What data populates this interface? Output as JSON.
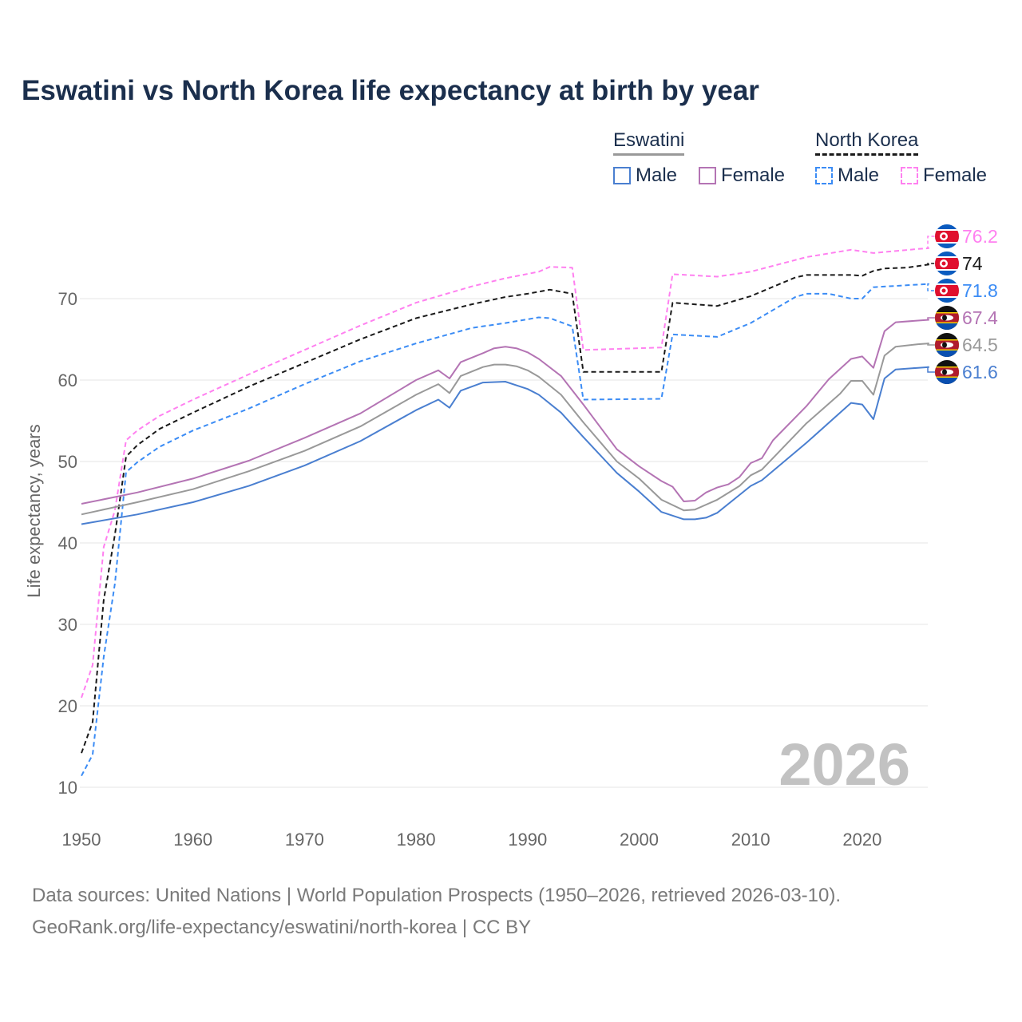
{
  "title": "Eswatini vs North Korea life expectancy at birth by year",
  "legend": {
    "groups": [
      {
        "name": "Eswatini",
        "items": [
          "Male",
          "Female"
        ]
      },
      {
        "name": "North Korea",
        "items": [
          "Male",
          "Female"
        ]
      }
    ]
  },
  "footer": {
    "line1": "Data sources: United Nations | World Population Prospects (1950–2026, retrieved 2026-03-10).",
    "line2": "GeoRank.org/life-expectancy/eswatini/north-korea | CC BY"
  },
  "chart_data": {
    "type": "line",
    "title": "Eswatini vs North Korea life expectancy at birth by year",
    "xlabel": "",
    "ylabel": "Life expectancy, years",
    "xlim": [
      1950,
      2026
    ],
    "ylim": [
      10,
      78
    ],
    "x_ticks": [
      "1950",
      "1960",
      "1970",
      "1980",
      "1990",
      "2000",
      "2010",
      "2020"
    ],
    "y_ticks": [
      "10",
      "20",
      "30",
      "40",
      "50",
      "60",
      "70"
    ],
    "grid": true,
    "year_watermark": "2026",
    "series": [
      {
        "name": "North Korea Female",
        "color": "#ff80f0",
        "dash": true,
        "end_label": "76.2",
        "flag": "north-korea",
        "points": [
          [
            1950,
            21.0
          ],
          [
            1951,
            25.0
          ],
          [
            1952,
            39.5
          ],
          [
            1953,
            44.0
          ],
          [
            1954,
            52.6
          ],
          [
            1955,
            53.8
          ],
          [
            1957,
            55.6
          ],
          [
            1960,
            57.6
          ],
          [
            1965,
            60.7
          ],
          [
            1970,
            63.7
          ],
          [
            1975,
            66.7
          ],
          [
            1980,
            69.5
          ],
          [
            1985,
            71.5
          ],
          [
            1988,
            72.5
          ],
          [
            1991,
            73.3
          ],
          [
            1992,
            73.9
          ],
          [
            1994,
            73.8
          ],
          [
            1995,
            63.7
          ],
          [
            2002,
            64.0
          ],
          [
            2003,
            73.0
          ],
          [
            2007,
            72.7
          ],
          [
            2010,
            73.3
          ],
          [
            2015,
            75.1
          ],
          [
            2019,
            76.0
          ],
          [
            2021,
            75.6
          ],
          [
            2025,
            76.1
          ],
          [
            2026,
            76.2
          ]
        ]
      },
      {
        "name": "North Korea",
        "color": "#1a1a1a",
        "dash": true,
        "end_label": "74",
        "flag": "north-korea",
        "points": [
          [
            1950,
            14.2
          ],
          [
            1951,
            18.0
          ],
          [
            1952,
            33.0
          ],
          [
            1953,
            41.0
          ],
          [
            1954,
            50.6
          ],
          [
            1955,
            52.0
          ],
          [
            1957,
            54.0
          ],
          [
            1960,
            56.0
          ],
          [
            1965,
            59.2
          ],
          [
            1970,
            62.1
          ],
          [
            1975,
            65.0
          ],
          [
            1980,
            67.6
          ],
          [
            1985,
            69.3
          ],
          [
            1988,
            70.2
          ],
          [
            1990,
            70.6
          ],
          [
            1992,
            71.1
          ],
          [
            1994,
            70.6
          ],
          [
            1995,
            61.0
          ],
          [
            2002,
            61.0
          ],
          [
            2003,
            69.5
          ],
          [
            2007,
            69.1
          ],
          [
            2010,
            70.3
          ],
          [
            2014,
            72.6
          ],
          [
            2015,
            72.9
          ],
          [
            2019,
            72.9
          ],
          [
            2020,
            72.8
          ],
          [
            2021,
            73.4
          ],
          [
            2022,
            73.7
          ],
          [
            2024,
            73.8
          ],
          [
            2026,
            74.2
          ]
        ]
      },
      {
        "name": "North Korea Male",
        "color": "#3b8cf5",
        "dash": true,
        "end_label": "71.8",
        "flag": "north-korea",
        "points": [
          [
            1950,
            11.4
          ],
          [
            1951,
            14.0
          ],
          [
            1952,
            26.0
          ],
          [
            1953,
            35.0
          ],
          [
            1954,
            48.7
          ],
          [
            1955,
            49.9
          ],
          [
            1957,
            51.8
          ],
          [
            1960,
            53.8
          ],
          [
            1965,
            56.5
          ],
          [
            1970,
            59.5
          ],
          [
            1975,
            62.3
          ],
          [
            1980,
            64.5
          ],
          [
            1985,
            66.4
          ],
          [
            1988,
            67.0
          ],
          [
            1991,
            67.7
          ],
          [
            1992,
            67.6
          ],
          [
            1994,
            66.6
          ],
          [
            1995,
            57.6
          ],
          [
            2002,
            57.7
          ],
          [
            2003,
            65.6
          ],
          [
            2007,
            65.3
          ],
          [
            2010,
            67.0
          ],
          [
            2014,
            70.2
          ],
          [
            2015,
            70.6
          ],
          [
            2017,
            70.6
          ],
          [
            2019,
            70.0
          ],
          [
            2020,
            70.0
          ],
          [
            2021,
            71.4
          ],
          [
            2026,
            71.8
          ]
        ]
      },
      {
        "name": "Eswatini Female",
        "color": "#b474b4",
        "dash": false,
        "end_label": "67.4",
        "flag": "eswatini",
        "points": [
          [
            1950,
            44.8
          ],
          [
            1955,
            46.2
          ],
          [
            1960,
            47.9
          ],
          [
            1965,
            50.1
          ],
          [
            1970,
            52.9
          ],
          [
            1975,
            55.9
          ],
          [
            1980,
            60.0
          ],
          [
            1982,
            61.2
          ],
          [
            1983,
            60.2
          ],
          [
            1984,
            62.2
          ],
          [
            1986,
            63.3
          ],
          [
            1987,
            63.9
          ],
          [
            1988,
            64.1
          ],
          [
            1989,
            63.9
          ],
          [
            1990,
            63.4
          ],
          [
            1991,
            62.6
          ],
          [
            1993,
            60.5
          ],
          [
            1995,
            57.0
          ],
          [
            1998,
            51.5
          ],
          [
            2000,
            49.4
          ],
          [
            2002,
            47.6
          ],
          [
            2003,
            46.9
          ],
          [
            2004,
            45.1
          ],
          [
            2005,
            45.2
          ],
          [
            2006,
            46.2
          ],
          [
            2007,
            46.8
          ],
          [
            2008,
            47.2
          ],
          [
            2009,
            48.1
          ],
          [
            2010,
            49.8
          ],
          [
            2011,
            50.4
          ],
          [
            2012,
            52.6
          ],
          [
            2015,
            56.8
          ],
          [
            2017,
            60.1
          ],
          [
            2019,
            62.6
          ],
          [
            2020,
            62.9
          ],
          [
            2021,
            61.5
          ],
          [
            2022,
            66.0
          ],
          [
            2023,
            67.1
          ],
          [
            2025,
            67.3
          ],
          [
            2026,
            67.4
          ]
        ]
      },
      {
        "name": "Eswatini",
        "color": "#999999",
        "dash": false,
        "end_label": "64.5",
        "flag": "eswatini",
        "points": [
          [
            1950,
            43.5
          ],
          [
            1955,
            45.0
          ],
          [
            1960,
            46.6
          ],
          [
            1965,
            48.8
          ],
          [
            1970,
            51.3
          ],
          [
            1975,
            54.3
          ],
          [
            1980,
            58.2
          ],
          [
            1982,
            59.5
          ],
          [
            1983,
            58.4
          ],
          [
            1984,
            60.5
          ],
          [
            1986,
            61.6
          ],
          [
            1987,
            61.9
          ],
          [
            1988,
            61.9
          ],
          [
            1989,
            61.7
          ],
          [
            1990,
            61.2
          ],
          [
            1991,
            60.4
          ],
          [
            1993,
            58.2
          ],
          [
            1995,
            54.8
          ],
          [
            1998,
            50.0
          ],
          [
            2000,
            47.9
          ],
          [
            2002,
            45.3
          ],
          [
            2004,
            44.0
          ],
          [
            2005,
            44.1
          ],
          [
            2007,
            45.3
          ],
          [
            2009,
            47.0
          ],
          [
            2010,
            48.3
          ],
          [
            2011,
            49.0
          ],
          [
            2015,
            54.7
          ],
          [
            2018,
            58.3
          ],
          [
            2019,
            59.9
          ],
          [
            2020,
            59.9
          ],
          [
            2021,
            58.2
          ],
          [
            2022,
            63.0
          ],
          [
            2023,
            64.1
          ],
          [
            2025,
            64.4
          ],
          [
            2026,
            64.5
          ]
        ]
      },
      {
        "name": "Eswatini Male",
        "color": "#4a7fd0",
        "dash": false,
        "end_label": "61.6",
        "flag": "eswatini",
        "points": [
          [
            1950,
            42.3
          ],
          [
            1955,
            43.5
          ],
          [
            1960,
            45.0
          ],
          [
            1965,
            47.0
          ],
          [
            1970,
            49.5
          ],
          [
            1975,
            52.5
          ],
          [
            1980,
            56.3
          ],
          [
            1982,
            57.6
          ],
          [
            1983,
            56.6
          ],
          [
            1984,
            58.7
          ],
          [
            1986,
            59.7
          ],
          [
            1988,
            59.8
          ],
          [
            1990,
            58.9
          ],
          [
            1991,
            58.2
          ],
          [
            1993,
            56.0
          ],
          [
            1995,
            53.0
          ],
          [
            1998,
            48.6
          ],
          [
            2000,
            46.3
          ],
          [
            2002,
            43.8
          ],
          [
            2004,
            42.9
          ],
          [
            2005,
            42.9
          ],
          [
            2006,
            43.1
          ],
          [
            2007,
            43.7
          ],
          [
            2010,
            47.0
          ],
          [
            2011,
            47.7
          ],
          [
            2015,
            52.3
          ],
          [
            2019,
            57.2
          ],
          [
            2020,
            57.0
          ],
          [
            2021,
            55.2
          ],
          [
            2022,
            60.2
          ],
          [
            2023,
            61.3
          ],
          [
            2025,
            61.5
          ],
          [
            2026,
            61.6
          ]
        ]
      }
    ]
  }
}
